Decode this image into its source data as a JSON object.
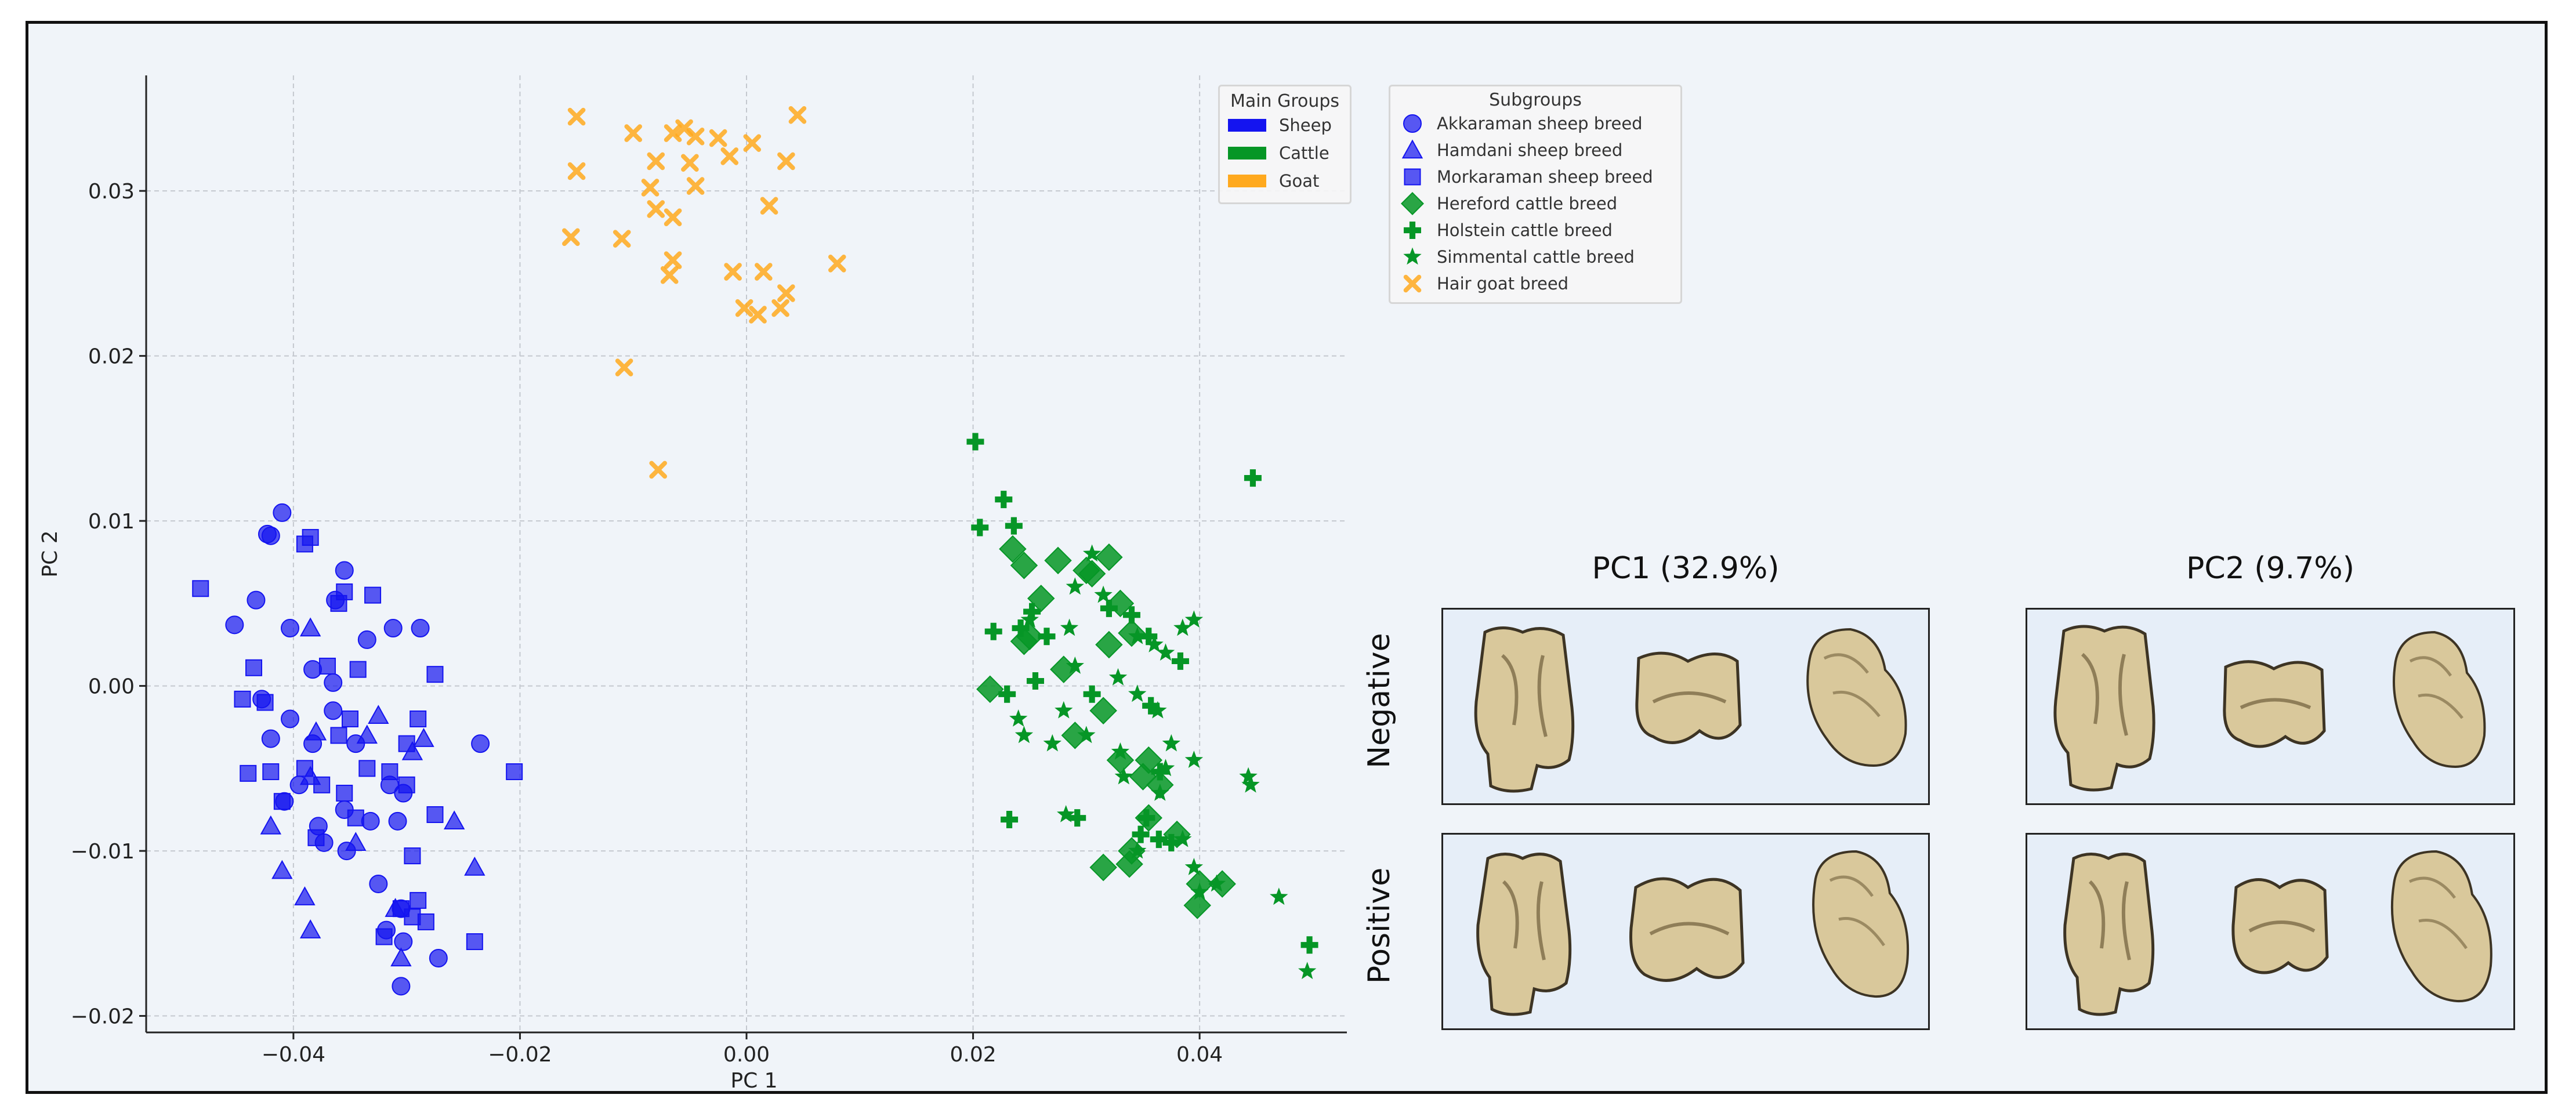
{
  "colors": {
    "sheep": "#1414f0",
    "cattle": "#069626",
    "goat": "#ffa91e",
    "bone": "#d9c89b",
    "bone_dark": "#3d3424"
  },
  "chart_data": {
    "type": "scatter",
    "xlabel": "PC 1",
    "ylabel": "PC 2",
    "xlim": [
      -0.053,
      0.053
    ],
    "ylim": [
      -0.021,
      0.037
    ],
    "xticks": [
      -0.04,
      -0.02,
      0.0,
      0.02,
      0.04
    ],
    "xtick_labels": [
      "−0.04",
      "−0.02",
      "0.00",
      "0.02",
      "0.04"
    ],
    "yticks": [
      -0.02,
      -0.01,
      0.0,
      0.01,
      0.02,
      0.03
    ],
    "ytick_labels": [
      "−0.02",
      "−0.01",
      "0.00",
      "0.01",
      "0.02",
      "0.03"
    ],
    "grid": true,
    "main_groups": {
      "title": "Main Groups",
      "placement": "top-right",
      "items": [
        {
          "name": "Sheep",
          "color": "#1414f0"
        },
        {
          "name": "Cattle",
          "color": "#069626"
        },
        {
          "name": "Goat",
          "color": "#ffa91e"
        }
      ]
    },
    "subgroups": {
      "title": "Subgroups",
      "placement": "outside-right",
      "items": [
        {
          "name": "Akkaraman sheep breed",
          "marker": "circle",
          "color": "#1414f0"
        },
        {
          "name": "Hamdani sheep breed",
          "marker": "triangle",
          "color": "#1414f0"
        },
        {
          "name": "Morkaraman sheep breed",
          "marker": "square",
          "color": "#1414f0"
        },
        {
          "name": "Hereford cattle breed",
          "marker": "diamond",
          "color": "#069626"
        },
        {
          "name": "Holstein cattle breed",
          "marker": "plus",
          "color": "#069626"
        },
        {
          "name": "Simmental cattle breed",
          "marker": "star",
          "color": "#069626"
        },
        {
          "name": "Hair goat breed",
          "marker": "x",
          "color": "#ffa91e"
        }
      ]
    },
    "series": [
      {
        "name": "Akkaraman sheep breed",
        "marker": "circle",
        "color": "#1414f0",
        "points": [
          [
            -0.041,
            0.0105
          ],
          [
            -0.0423,
            0.0092
          ],
          [
            -0.042,
            0.0091
          ],
          [
            -0.0355,
            0.007
          ],
          [
            -0.0433,
            0.0052
          ],
          [
            -0.0363,
            0.0052
          ],
          [
            -0.0452,
            0.0037
          ],
          [
            -0.0403,
            0.0035
          ],
          [
            -0.0312,
            0.0035
          ],
          [
            -0.0288,
            0.0035
          ],
          [
            -0.0335,
            0.0028
          ],
          [
            -0.0383,
            0.001
          ],
          [
            -0.0365,
            0.0002
          ],
          [
            -0.0428,
            -0.0008
          ],
          [
            -0.0403,
            -0.002
          ],
          [
            -0.0365,
            -0.0015
          ],
          [
            -0.042,
            -0.0032
          ],
          [
            -0.0383,
            -0.0035
          ],
          [
            -0.0345,
            -0.0035
          ],
          [
            -0.0235,
            -0.0035
          ],
          [
            -0.0395,
            -0.006
          ],
          [
            -0.0315,
            -0.006
          ],
          [
            -0.0408,
            -0.007
          ],
          [
            -0.0355,
            -0.0075
          ],
          [
            -0.0303,
            -0.0065
          ],
          [
            -0.0378,
            -0.0085
          ],
          [
            -0.0332,
            -0.0082
          ],
          [
            -0.0308,
            -0.0082
          ],
          [
            -0.0373,
            -0.0095
          ],
          [
            -0.0353,
            -0.01
          ],
          [
            -0.0325,
            -0.012
          ],
          [
            -0.0305,
            -0.0135
          ],
          [
            -0.0303,
            -0.0155
          ],
          [
            -0.0318,
            -0.0148
          ],
          [
            -0.0272,
            -0.0165
          ],
          [
            -0.0305,
            -0.0182
          ]
        ]
      },
      {
        "name": "Hamdani sheep breed",
        "marker": "triangle",
        "color": "#1414f0",
        "points": [
          [
            -0.0385,
            0.0035
          ],
          [
            -0.0325,
            -0.0018
          ],
          [
            -0.038,
            -0.0028
          ],
          [
            -0.0285,
            -0.0032
          ],
          [
            -0.0335,
            -0.003
          ],
          [
            -0.0295,
            -0.004
          ],
          [
            -0.042,
            -0.0085
          ],
          [
            -0.0385,
            -0.0055
          ],
          [
            -0.0345,
            -0.0095
          ],
          [
            -0.0258,
            -0.0082
          ],
          [
            -0.024,
            -0.011
          ],
          [
            -0.041,
            -0.0112
          ],
          [
            -0.039,
            -0.0128
          ],
          [
            -0.0385,
            -0.0148
          ],
          [
            -0.0305,
            -0.0165
          ],
          [
            -0.031,
            -0.0135
          ]
        ]
      },
      {
        "name": "Morkaraman sheep breed",
        "marker": "square",
        "color": "#1414f0",
        "points": [
          [
            -0.0385,
            0.009
          ],
          [
            -0.039,
            0.0086
          ],
          [
            -0.0482,
            0.0059
          ],
          [
            -0.0355,
            0.0057
          ],
          [
            -0.033,
            0.0055
          ],
          [
            -0.036,
            0.005
          ],
          [
            -0.0435,
            0.0011
          ],
          [
            -0.037,
            0.0012
          ],
          [
            -0.0343,
            0.001
          ],
          [
            -0.0275,
            0.0007
          ],
          [
            -0.0445,
            -0.0008
          ],
          [
            -0.0425,
            -0.001
          ],
          [
            -0.035,
            -0.002
          ],
          [
            -0.029,
            -0.002
          ],
          [
            -0.036,
            -0.003
          ],
          [
            -0.03,
            -0.0035
          ],
          [
            -0.044,
            -0.0053
          ],
          [
            -0.042,
            -0.0052
          ],
          [
            -0.039,
            -0.005
          ],
          [
            -0.0335,
            -0.005
          ],
          [
            -0.0375,
            -0.006
          ],
          [
            -0.0355,
            -0.0065
          ],
          [
            -0.0315,
            -0.0052
          ],
          [
            -0.03,
            -0.006
          ],
          [
            -0.0345,
            -0.008
          ],
          [
            -0.0275,
            -0.0078
          ],
          [
            -0.0205,
            -0.0052
          ],
          [
            -0.041,
            -0.007
          ],
          [
            -0.038,
            -0.0092
          ],
          [
            -0.0295,
            -0.0103
          ],
          [
            -0.0305,
            -0.0135
          ],
          [
            -0.0295,
            -0.014
          ],
          [
            -0.032,
            -0.0152
          ],
          [
            -0.0283,
            -0.0143
          ],
          [
            -0.024,
            -0.0155
          ],
          [
            -0.029,
            -0.013
          ]
        ]
      },
      {
        "name": "Hereford cattle breed",
        "marker": "diamond",
        "color": "#069626",
        "points": [
          [
            0.0235,
            0.0083
          ],
          [
            0.0245,
            0.0073
          ],
          [
            0.0275,
            0.0076
          ],
          [
            0.03,
            0.007
          ],
          [
            0.032,
            0.0078
          ],
          [
            0.0305,
            0.0068
          ],
          [
            0.026,
            0.0053
          ],
          [
            0.033,
            0.005
          ],
          [
            0.025,
            0.003
          ],
          [
            0.0245,
            0.0027
          ],
          [
            0.034,
            0.0032
          ],
          [
            0.032,
            0.0025
          ],
          [
            0.0215,
            -0.0002
          ],
          [
            0.028,
            0.001
          ],
          [
            0.0315,
            -0.0015
          ],
          [
            0.029,
            -0.003
          ],
          [
            0.033,
            -0.0045
          ],
          [
            0.035,
            -0.0055
          ],
          [
            0.0355,
            -0.0045
          ],
          [
            0.0365,
            -0.006
          ],
          [
            0.0355,
            -0.008
          ],
          [
            0.038,
            -0.009
          ],
          [
            0.034,
            -0.01
          ],
          [
            0.0338,
            -0.0108
          ],
          [
            0.0315,
            -0.011
          ],
          [
            0.04,
            -0.012
          ],
          [
            0.042,
            -0.012
          ],
          [
            0.0398,
            -0.0133
          ]
        ]
      },
      {
        "name": "Holstein cattle breed",
        "marker": "plus",
        "color": "#069626",
        "points": [
          [
            0.0202,
            0.0148
          ],
          [
            0.0227,
            0.0113
          ],
          [
            0.0206,
            0.0096
          ],
          [
            0.0236,
            0.0097
          ],
          [
            0.0447,
            0.0126
          ],
          [
            0.0252,
            0.0045
          ],
          [
            0.0218,
            0.0033
          ],
          [
            0.0242,
            0.0035
          ],
          [
            0.0265,
            0.003
          ],
          [
            0.032,
            0.0047
          ],
          [
            0.034,
            0.0043
          ],
          [
            0.0355,
            0.003
          ],
          [
            0.0255,
            0.0003
          ],
          [
            0.0383,
            0.0015
          ],
          [
            0.023,
            -0.0005
          ],
          [
            0.0305,
            -0.0005
          ],
          [
            0.0357,
            -0.0012
          ],
          [
            0.0365,
            -0.0052
          ],
          [
            0.0353,
            -0.008
          ],
          [
            0.0232,
            -0.0081
          ],
          [
            0.0292,
            -0.008
          ],
          [
            0.0348,
            -0.009
          ],
          [
            0.0364,
            -0.0093
          ],
          [
            0.0375,
            -0.0095
          ],
          [
            0.0497,
            -0.0157
          ]
        ]
      },
      {
        "name": "Simmental cattle breed",
        "marker": "star",
        "color": "#069626",
        "points": [
          [
            0.025,
            0.004
          ],
          [
            0.0285,
            0.0035
          ],
          [
            0.029,
            0.006
          ],
          [
            0.0305,
            0.008
          ],
          [
            0.0315,
            0.0055
          ],
          [
            0.0345,
            0.003
          ],
          [
            0.036,
            0.0025
          ],
          [
            0.037,
            0.002
          ],
          [
            0.0395,
            0.004
          ],
          [
            0.0385,
            0.0035
          ],
          [
            0.029,
            0.0012
          ],
          [
            0.0328,
            0.0005
          ],
          [
            0.0345,
            -0.0005
          ],
          [
            0.0363,
            -0.0015
          ],
          [
            0.028,
            -0.0015
          ],
          [
            0.024,
            -0.002
          ],
          [
            0.0245,
            -0.003
          ],
          [
            0.027,
            -0.0035
          ],
          [
            0.03,
            -0.003
          ],
          [
            0.033,
            -0.004
          ],
          [
            0.0375,
            -0.0035
          ],
          [
            0.0395,
            -0.0045
          ],
          [
            0.037,
            -0.005
          ],
          [
            0.0333,
            -0.0055
          ],
          [
            0.0365,
            -0.0065
          ],
          [
            0.0443,
            -0.0055
          ],
          [
            0.0445,
            -0.006
          ],
          [
            0.0282,
            -0.0078
          ],
          [
            0.0345,
            -0.01
          ],
          [
            0.0385,
            -0.0093
          ],
          [
            0.0395,
            -0.011
          ],
          [
            0.04,
            -0.0125
          ],
          [
            0.0415,
            -0.012
          ],
          [
            0.047,
            -0.0128
          ],
          [
            0.0495,
            -0.0173
          ]
        ]
      },
      {
        "name": "Hair goat breed",
        "marker": "x",
        "color": "#ffa91e",
        "points": [
          [
            -0.015,
            0.0345
          ],
          [
            -0.01,
            0.0335
          ],
          [
            -0.0065,
            0.0335
          ],
          [
            -0.0055,
            0.0338
          ],
          [
            -0.0045,
            0.0333
          ],
          [
            -0.0025,
            0.0332
          ],
          [
            0.0005,
            0.0329
          ],
          [
            0.0045,
            0.0346
          ],
          [
            -0.015,
            0.0312
          ],
          [
            -0.008,
            0.0318
          ],
          [
            -0.005,
            0.0317
          ],
          [
            -0.0015,
            0.0321
          ],
          [
            0.0035,
            0.0318
          ],
          [
            -0.0085,
            0.0302
          ],
          [
            -0.0045,
            0.0303
          ],
          [
            -0.008,
            0.0289
          ],
          [
            -0.0065,
            0.0284
          ],
          [
            0.002,
            0.0291
          ],
          [
            -0.0155,
            0.0272
          ],
          [
            -0.011,
            0.0271
          ],
          [
            -0.0065,
            0.0258
          ],
          [
            -0.0068,
            0.0249
          ],
          [
            -0.0012,
            0.0251
          ],
          [
            0.0015,
            0.0251
          ],
          [
            0.008,
            0.0256
          ],
          [
            0.0035,
            0.0238
          ],
          [
            -0.0002,
            0.0229
          ],
          [
            0.001,
            0.0225
          ],
          [
            0.003,
            0.0229
          ],
          [
            -0.0108,
            0.0193
          ],
          [
            -0.0078,
            0.0131
          ]
        ]
      }
    ]
  },
  "shape_panels": {
    "columns": [
      {
        "title": "PC1 (32.9%)"
      },
      {
        "title": "PC2 (9.7%)"
      }
    ],
    "rows": [
      {
        "label": "Negative"
      },
      {
        "label": "Positive"
      }
    ]
  }
}
